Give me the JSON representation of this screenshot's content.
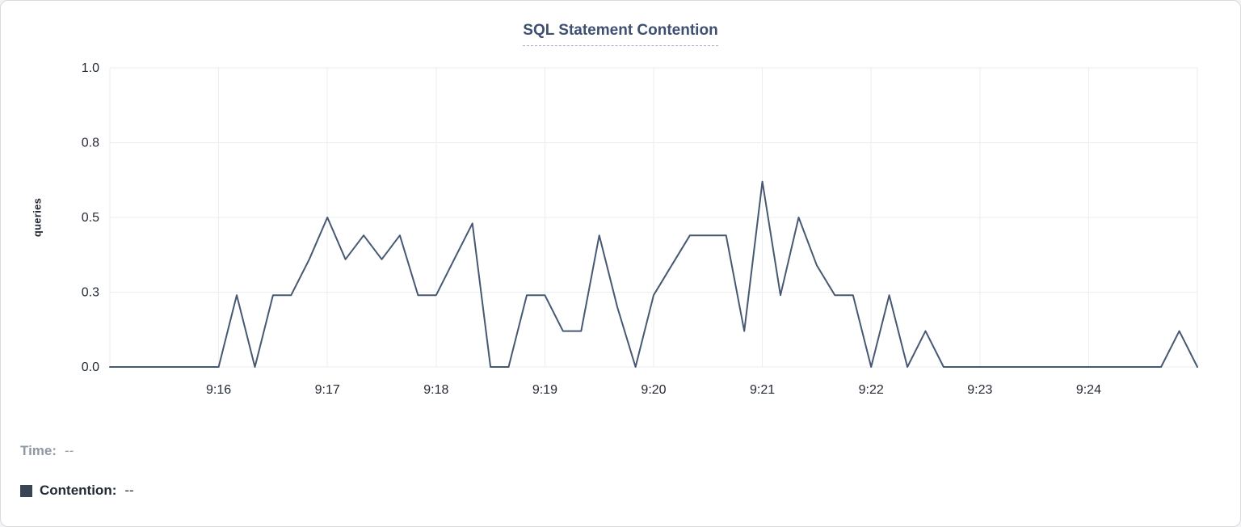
{
  "chart": {
    "title": "SQL Statement Contention",
    "ylabel": "queries"
  },
  "legend": {
    "time_label": "Time:",
    "time_value": "--",
    "contention_label": "Contention:",
    "contention_value": "--"
  },
  "colors": {
    "line": "#475872",
    "swatch": "#394455",
    "title": "#3e4f72",
    "grid": "#ededef",
    "tick_text": "#242a35",
    "muted_text": "#9098a3",
    "title_underline": "#a9abce",
    "card_border": "#d9dade"
  },
  "chart_data": {
    "type": "line",
    "title": "SQL Statement Contention",
    "xlabel": "",
    "ylabel": "queries",
    "ylim": [
      0,
      1.0
    ],
    "xlim_seconds": [
      0,
      600
    ],
    "x_axis_start_time": "9:15",
    "x_axis_end_time": "9:25",
    "grid": true,
    "legend_position": "bottom-left",
    "y_ticks": [
      {
        "value": 0,
        "label": "0.0"
      },
      {
        "value": 0.25,
        "label": "0.3"
      },
      {
        "value": 0.5,
        "label": "0.5"
      },
      {
        "value": 0.75,
        "label": "0.8"
      },
      {
        "value": 1.0,
        "label": "1.0"
      }
    ],
    "x_ticks": [
      {
        "seconds": 0,
        "label": ""
      },
      {
        "seconds": 60,
        "label": "9:16"
      },
      {
        "seconds": 120,
        "label": "9:17"
      },
      {
        "seconds": 180,
        "label": "9:18"
      },
      {
        "seconds": 240,
        "label": "9:19"
      },
      {
        "seconds": 300,
        "label": "9:20"
      },
      {
        "seconds": 360,
        "label": "9:21"
      },
      {
        "seconds": 420,
        "label": "9:22"
      },
      {
        "seconds": 480,
        "label": "9:23"
      },
      {
        "seconds": 540,
        "label": "9:24"
      },
      {
        "seconds": 600,
        "label": ""
      }
    ],
    "series": [
      {
        "name": "Contention",
        "x_start_seconds": 0,
        "x_step_seconds": 10,
        "values": [
          0,
          0,
          0,
          0,
          0,
          0,
          0,
          0.24,
          0,
          0.24,
          0.24,
          0.36,
          0.5,
          0.36,
          0.44,
          0.36,
          0.44,
          0.24,
          0.24,
          0.36,
          0.48,
          0,
          0,
          0.24,
          0.24,
          0.12,
          0.12,
          0.44,
          0.2,
          0,
          0.24,
          0.34,
          0.44,
          0.44,
          0.44,
          0.12,
          0.62,
          0.24,
          0.5,
          0.34,
          0.24,
          0.24,
          0,
          0.24,
          0,
          0.12,
          0,
          0,
          0,
          0,
          0,
          0,
          0,
          0,
          0,
          0,
          0,
          0,
          0,
          0.12,
          0
        ]
      }
    ]
  }
}
